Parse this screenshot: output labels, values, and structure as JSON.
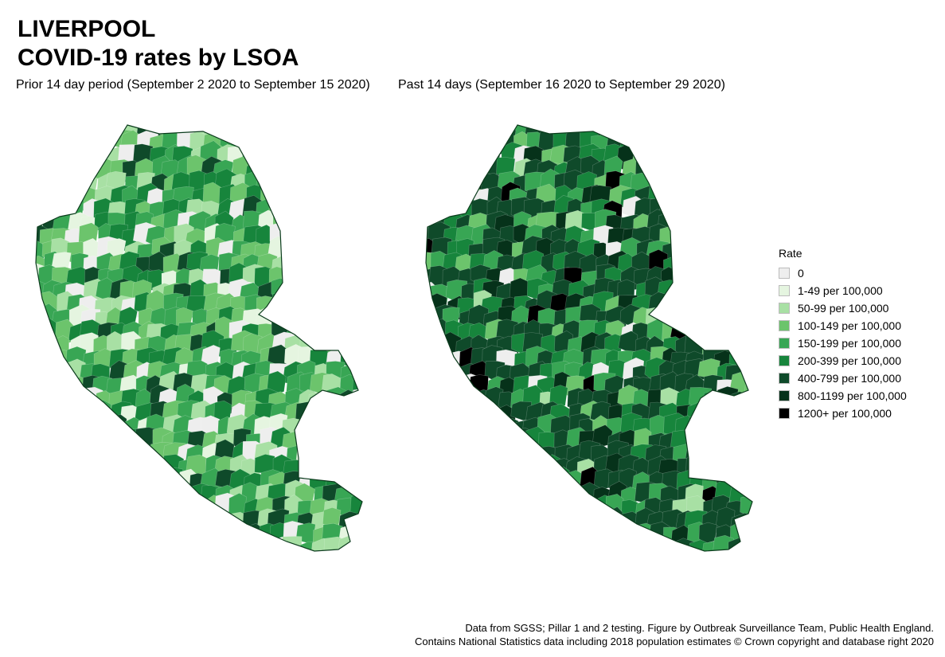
{
  "title_line1": "LIVERPOOL",
  "title_line2": "COVID-19 rates by LSOA",
  "maps": [
    {
      "subtitle": "Prior 14 day period (September  2 2020 to September 15 2020)",
      "weights": [
        0.07,
        0.06,
        0.13,
        0.22,
        0.22,
        0.2,
        0.1,
        0.0,
        0.0
      ],
      "seed": 7
    },
    {
      "subtitle": "Past 14 days (September 16 2020 to September 29 2020)",
      "weights": [
        0.02,
        0.0,
        0.03,
        0.06,
        0.12,
        0.22,
        0.4,
        0.12,
        0.03
      ],
      "seed": 19
    }
  ],
  "legend": {
    "title": "Rate",
    "items": [
      {
        "label": "0",
        "color": "#eeeeee"
      },
      {
        "label": "1-49 per 100,000",
        "color": "#e5f5e0"
      },
      {
        "label": "50-99 per 100,000",
        "color": "#a8e0a4"
      },
      {
        "label": "100-149 per 100,000",
        "color": "#6cc46c"
      },
      {
        "label": "150-199 per 100,000",
        "color": "#38a654"
      },
      {
        "label": "200-399 per 100,000",
        "color": "#17853c"
      },
      {
        "label": "400-799 per 100,000",
        "color": "#0f4a2a"
      },
      {
        "label": "800-1199 per 100,000",
        "color": "#06321a"
      },
      {
        "label": "1200+ per 100,000",
        "color": "#000000"
      }
    ]
  },
  "footer_line1": "Data from SGSS; Pillar 1 and 2 testing. Figure by Outbreak Surveillance Team, Public Health England.",
  "footer_line2": "Contains National Statistics data including 2018 population estimates © Crown copyright and database right 2020"
}
